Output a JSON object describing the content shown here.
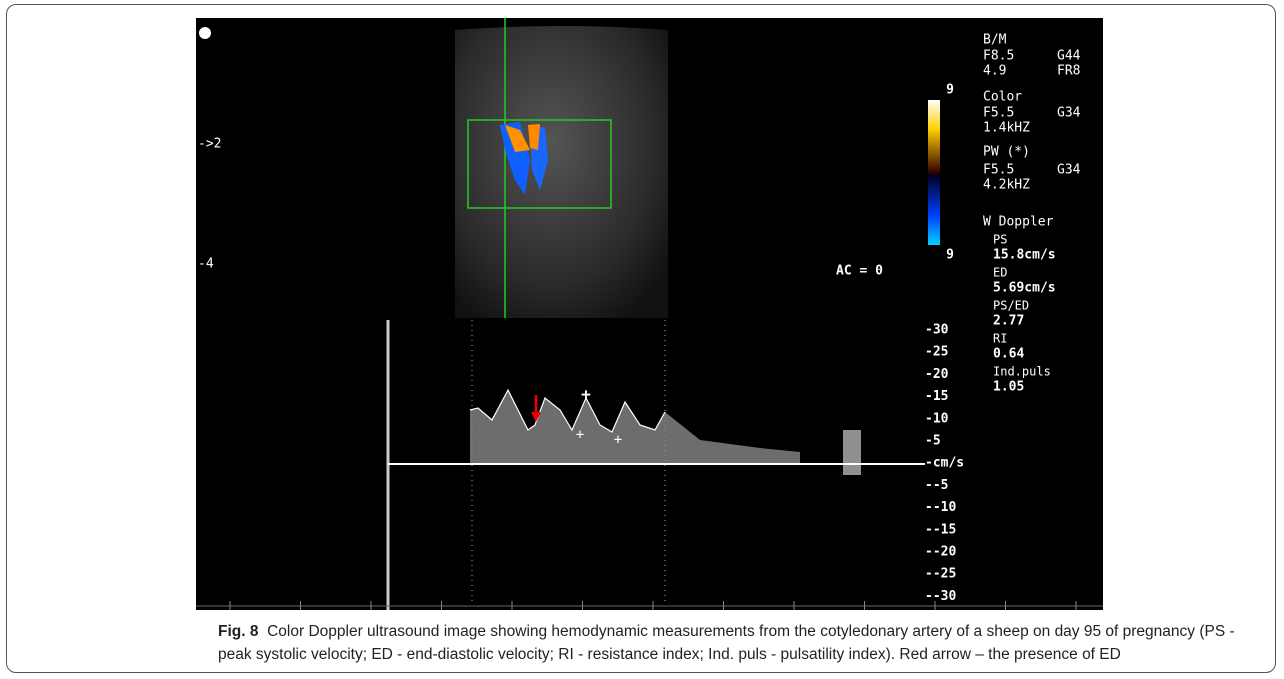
{
  "image": {
    "depth_marks": [
      "->2",
      "-4"
    ],
    "color_scale": {
      "top": "9",
      "bottom": "9"
    },
    "ac_label": "AC = 0",
    "info": [
      [
        "B/M"
      ],
      [
        "F8.5",
        "G44"
      ],
      [
        "4.9",
        "FR8"
      ],
      [
        "Color"
      ],
      [
        "F5.5",
        "G34"
      ],
      [
        "1.4kHZ"
      ],
      [
        "PW (*)"
      ],
      [
        "F5.5",
        "G34"
      ],
      [
        "4.2kHZ"
      ],
      [
        "W Doppler"
      ]
    ],
    "measurements": [
      {
        "label": "PS",
        "value": "15.8cm/s"
      },
      {
        "label": "ED",
        "value": "5.69cm/s"
      },
      {
        "label": "PS/ED",
        "value": "2.77"
      },
      {
        "label": "RI",
        "value": "0.64"
      },
      {
        "label": "Ind.puls",
        "value": "1.05"
      }
    ],
    "velocity_scale": [
      "-30",
      "-25",
      "-20",
      "-15",
      "-10",
      "-5",
      "-cm/s",
      "--5",
      "--10",
      "--15",
      "--20",
      "--25",
      "--30"
    ]
  },
  "caption": {
    "label": "Fig. 8",
    "text": "Color Doppler ultrasound image showing hemodynamic measurements from the cotyledonary artery of a sheep on day 95 of pregnancy (PS - peak systolic velocity; ED - end-diastolic velocity; RI - resistance index; Ind. puls - pulsatility index). Red arrow – the presence of ED"
  }
}
